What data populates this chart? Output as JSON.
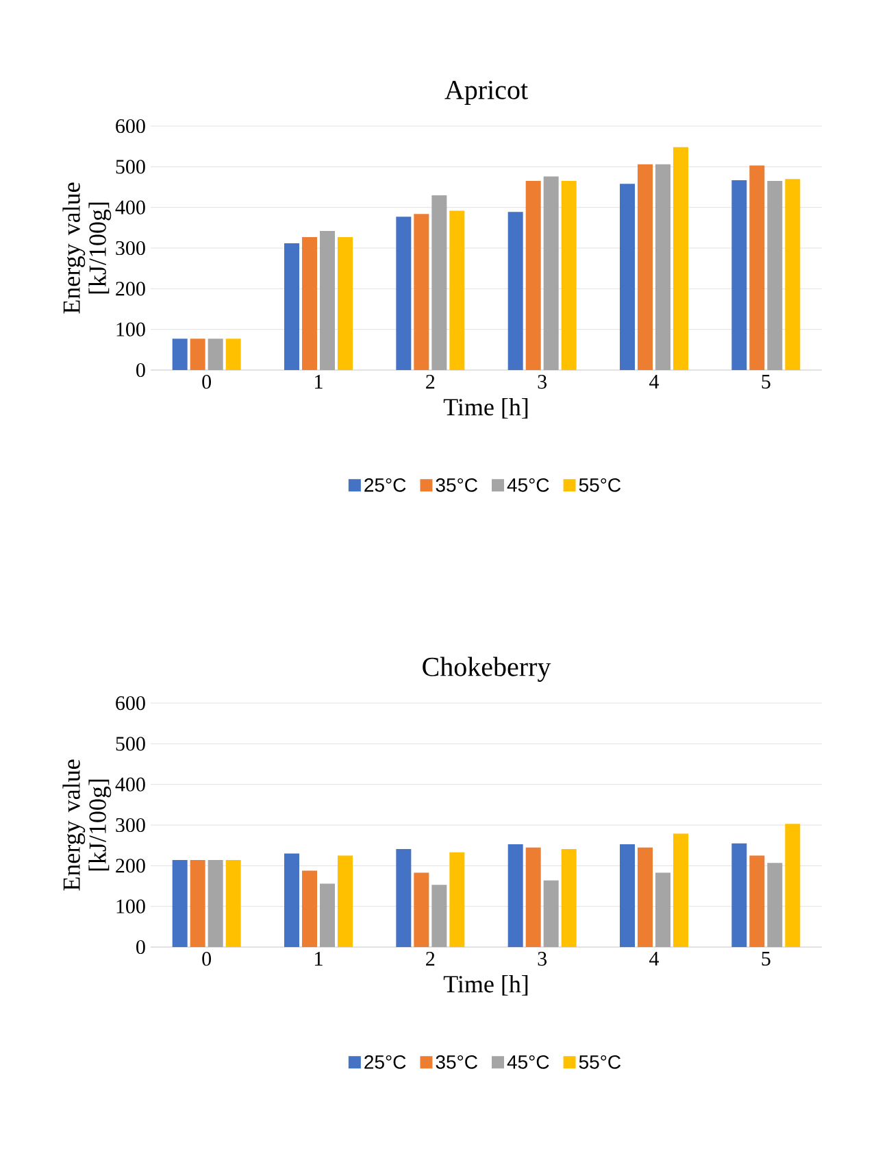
{
  "chart_data": [
    {
      "type": "bar",
      "title": "Apricot",
      "xlabel": "Time [h]",
      "ylabel": "Energy value [kJ/100g]",
      "categories": [
        "0",
        "1",
        "2",
        "3",
        "4",
        "5"
      ],
      "ylim": [
        0,
        600
      ],
      "yticks": [
        0,
        100,
        200,
        300,
        400,
        500,
        600
      ],
      "grid": "y",
      "legend": "bottom",
      "series": [
        {
          "name": "25°C",
          "color": "#4472c4",
          "values": [
            77,
            312,
            377,
            389,
            458,
            467
          ]
        },
        {
          "name": "35°C",
          "color": "#ed7d31",
          "values": [
            77,
            327,
            384,
            465,
            506,
            503
          ]
        },
        {
          "name": "45°C",
          "color": "#a5a5a5",
          "values": [
            77,
            342,
            430,
            476,
            506,
            465
          ]
        },
        {
          "name": "55°C",
          "color": "#ffc000",
          "values": [
            77,
            327,
            392,
            465,
            548,
            470
          ]
        }
      ]
    },
    {
      "type": "bar",
      "title": "Chokeberry",
      "xlabel": "Time [h]",
      "ylabel": "Energy value [kJ/100g]",
      "categories": [
        "0",
        "1",
        "2",
        "3",
        "4",
        "5"
      ],
      "ylim": [
        0,
        600
      ],
      "yticks": [
        0,
        100,
        200,
        300,
        400,
        500,
        600
      ],
      "grid": "y",
      "legend": "bottom",
      "series": [
        {
          "name": "25°C",
          "color": "#4472c4",
          "values": [
            214,
            230,
            241,
            253,
            253,
            255
          ]
        },
        {
          "name": "35°C",
          "color": "#ed7d31",
          "values": [
            214,
            188,
            183,
            245,
            245,
            225
          ]
        },
        {
          "name": "45°C",
          "color": "#a5a5a5",
          "values": [
            214,
            156,
            153,
            164,
            183,
            207
          ]
        },
        {
          "name": "55°C",
          "color": "#ffc000",
          "values": [
            214,
            225,
            233,
            241,
            279,
            303
          ]
        }
      ]
    }
  ]
}
